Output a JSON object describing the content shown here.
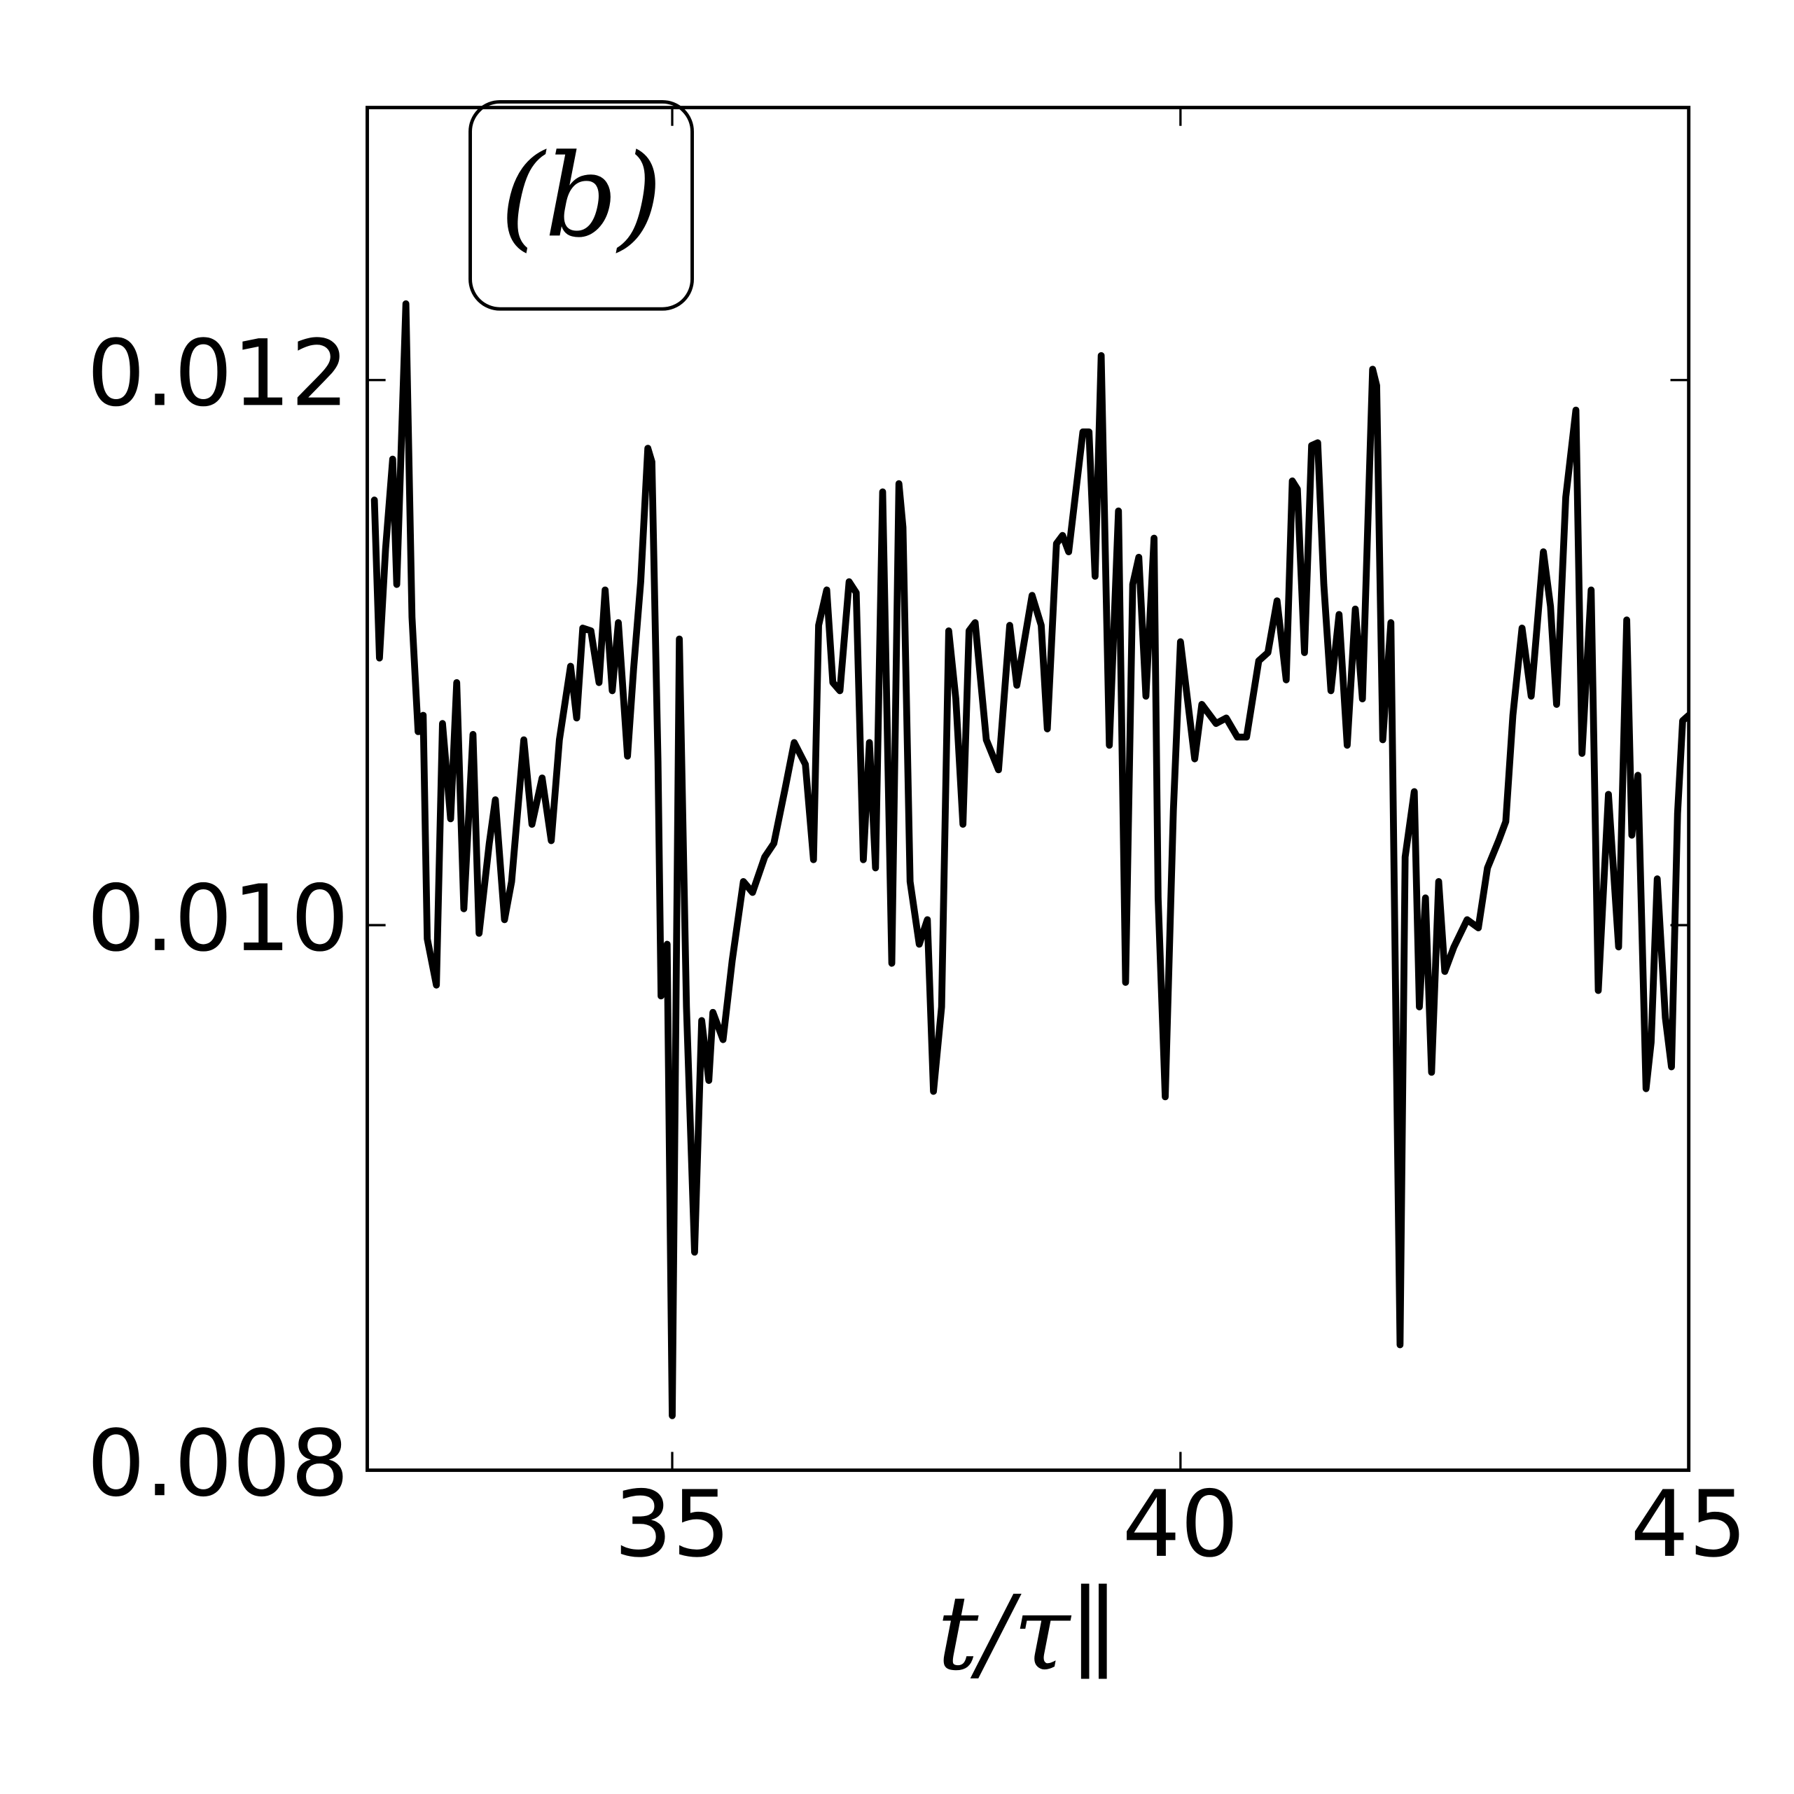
{
  "chart_data": {
    "type": "line",
    "annotation": "(b)",
    "xlabel": "t/τ∥",
    "color": "#000000",
    "xlim": [
      32,
      45
    ],
    "xticks": [
      35,
      40,
      45
    ],
    "ylim": [
      0.008,
      0.013
    ],
    "yticks": [
      0.008,
      {
        "value": 0.01,
        "label": "0.010"
      },
      0.012
    ],
    "x": [
      32.07,
      32.12,
      32.18,
      32.25,
      32.29,
      32.38,
      32.44,
      32.5,
      32.55,
      32.59,
      32.68,
      32.74,
      32.82,
      32.88,
      32.95,
      33.04,
      33.1,
      33.2,
      33.26,
      33.35,
      33.42,
      33.54,
      33.62,
      33.72,
      33.81,
      33.89,
      34.0,
      34.06,
      34.12,
      34.2,
      34.28,
      34.34,
      34.41,
      34.47,
      34.56,
      34.62,
      34.69,
      34.76,
      34.8,
      34.86,
      34.89,
      34.95,
      35.0,
      35.07,
      35.14,
      35.22,
      35.29,
      35.36,
      35.4,
      35.5,
      35.59,
      35.7,
      35.79,
      35.91,
      36.0,
      36.11,
      36.2,
      36.31,
      36.39,
      36.44,
      36.52,
      36.58,
      36.65,
      36.74,
      36.81,
      36.88,
      36.94,
      37.0,
      37.07,
      37.16,
      37.23,
      37.27,
      37.34,
      37.43,
      37.51,
      37.57,
      37.65,
      37.72,
      37.79,
      37.86,
      37.92,
      37.98,
      38.09,
      38.21,
      38.32,
      38.39,
      38.54,
      38.63,
      38.69,
      38.78,
      38.84,
      38.9,
      38.97,
      39.04,
      39.1,
      39.16,
      39.22,
      39.3,
      39.39,
      39.46,
      39.53,
      39.59,
      39.66,
      39.74,
      39.78,
      39.85,
      39.93,
      40.0,
      40.14,
      40.21,
      40.35,
      40.45,
      40.56,
      40.65,
      40.77,
      40.86,
      40.95,
      41.04,
      41.1,
      41.15,
      41.22,
      41.29,
      41.35,
      41.41,
      41.48,
      41.56,
      41.64,
      41.72,
      41.79,
      41.89,
      41.93,
      41.99,
      42.07,
      42.16,
      42.21,
      42.3,
      42.35,
      42.41,
      42.47,
      42.54,
      42.6,
      42.69,
      42.82,
      42.93,
      43.02,
      43.13,
      43.2,
      43.27,
      43.36,
      43.45,
      43.57,
      43.64,
      43.7,
      43.79,
      43.89,
      43.95,
      44.04,
      44.11,
      44.21,
      44.31,
      44.39,
      44.44,
      44.5,
      44.58,
      44.63,
      44.69,
      44.77,
      44.83,
      44.89,
      44.94,
      45.0
    ],
    "values": [
      0.01156,
      0.01098,
      0.01138,
      0.01171,
      0.01125,
      0.01228,
      0.01113,
      0.01071,
      0.01077,
      0.00995,
      0.00978,
      0.01074,
      0.01039,
      0.01089,
      0.01006,
      0.0107,
      0.00997,
      0.0103,
      0.01046,
      0.01002,
      0.01016,
      0.01068,
      0.01037,
      0.01054,
      0.01031,
      0.01068,
      0.01095,
      0.01076,
      0.01109,
      0.01108,
      0.01089,
      0.01123,
      0.01086,
      0.01111,
      0.01062,
      0.01094,
      0.01126,
      0.01175,
      0.0117,
      0.0106,
      0.00974,
      0.00993,
      0.0082,
      0.01105,
      0.0097,
      0.0088,
      0.00965,
      0.00943,
      0.00968,
      0.00958,
      0.00987,
      0.01016,
      0.01012,
      0.01025,
      0.0103,
      0.0105,
      0.01067,
      0.01059,
      0.01024,
      0.0111,
      0.01123,
      0.01089,
      0.01086,
      0.01126,
      0.01122,
      0.01024,
      0.01067,
      0.01021,
      0.01159,
      0.00986,
      0.01162,
      0.01146,
      0.01016,
      0.00993,
      0.01002,
      0.00939,
      0.0097,
      0.01108,
      0.01083,
      0.01037,
      0.01108,
      0.01111,
      0.01068,
      0.01057,
      0.0111,
      0.01088,
      0.01121,
      0.0111,
      0.01072,
      0.0114,
      0.01143,
      0.01137,
      0.01159,
      0.01181,
      0.01181,
      0.01128,
      0.01209,
      0.01066,
      0.01152,
      0.00979,
      0.01125,
      0.01135,
      0.01084,
      0.01142,
      0.0101,
      0.00937,
      0.01042,
      0.01104,
      0.01061,
      0.01081,
      0.01074,
      0.01076,
      0.01069,
      0.01069,
      0.01097,
      0.011,
      0.01119,
      0.0109,
      0.01163,
      0.0116,
      0.011,
      0.01176,
      0.01177,
      0.01125,
      0.01086,
      0.01114,
      0.01066,
      0.01116,
      0.01083,
      0.01204,
      0.01198,
      0.01068,
      0.01111,
      0.00846,
      0.01025,
      0.01049,
      0.0097,
      0.0101,
      0.00946,
      0.01016,
      0.00983,
      0.00992,
      0.01002,
      0.00999,
      0.01021,
      0.01031,
      0.01038,
      0.01077,
      0.01109,
      0.01084,
      0.01137,
      0.01117,
      0.01081,
      0.01157,
      0.01189,
      0.01063,
      0.01123,
      0.00976,
      0.01048,
      0.00992,
      0.01112,
      0.01033,
      0.01055,
      0.0094,
      0.00957,
      0.01017,
      0.00966,
      0.00948,
      0.01041,
      0.01075,
      0.01077
    ]
  }
}
